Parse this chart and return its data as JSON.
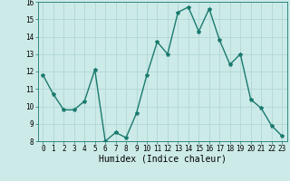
{
  "x": [
    0,
    1,
    2,
    3,
    4,
    5,
    6,
    7,
    8,
    9,
    10,
    11,
    12,
    13,
    14,
    15,
    16,
    17,
    18,
    19,
    20,
    21,
    22,
    23
  ],
  "y": [
    11.8,
    10.7,
    9.8,
    9.8,
    10.3,
    12.1,
    8.0,
    8.5,
    8.2,
    9.6,
    11.8,
    13.7,
    13.0,
    15.4,
    15.7,
    14.3,
    15.6,
    13.8,
    12.4,
    13.0,
    10.4,
    9.9,
    8.9,
    8.3
  ],
  "line_color": "#1a7a6e",
  "marker": "*",
  "marker_size": 3,
  "bg_color": "#cceae8",
  "grid_color": "#b0d8d5",
  "xlabel": "Humidex (Indice chaleur)",
  "ylim": [
    8,
    16
  ],
  "xlim": [
    -0.5,
    23.5
  ],
  "yticks": [
    8,
    9,
    10,
    11,
    12,
    13,
    14,
    15,
    16
  ],
  "xticks": [
    0,
    1,
    2,
    3,
    4,
    5,
    6,
    7,
    8,
    9,
    10,
    11,
    12,
    13,
    14,
    15,
    16,
    17,
    18,
    19,
    20,
    21,
    22,
    23
  ],
  "tick_fontsize": 5.5,
  "xlabel_fontsize": 7,
  "line_width": 1.0
}
